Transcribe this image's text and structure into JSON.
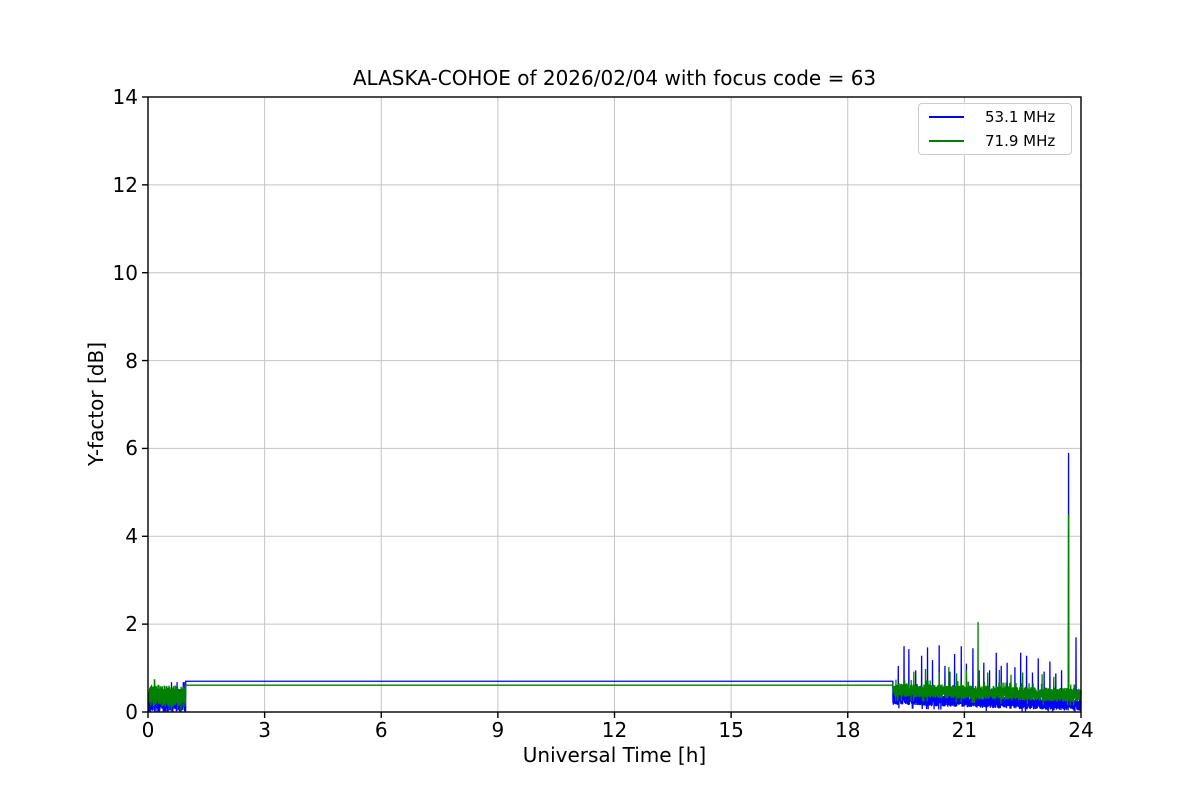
{
  "chart_data": {
    "type": "line",
    "title": "ALASKA-COHOE of 2026/02/04 with focus code = 63",
    "xlabel": "Universal Time [h]",
    "ylabel": "Y-factor [dB]",
    "xlim": [
      0,
      24
    ],
    "ylim": [
      0,
      14
    ],
    "x_ticks": [
      0,
      3,
      6,
      9,
      12,
      15,
      18,
      21,
      24
    ],
    "y_ticks": [
      0,
      2,
      4,
      6,
      8,
      10,
      12,
      14
    ],
    "grid": true,
    "grid_color": "#c4c4c4",
    "axis_color": "#000000",
    "legend": {
      "position": "upper right",
      "entries": [
        {
          "label": "53.1 MHz",
          "color": "#0000ff"
        },
        {
          "label": "71.9 MHz",
          "color": "#008000"
        }
      ]
    },
    "series": [
      {
        "name": "53.1 MHz",
        "color": "#0000ff",
        "segments": [
          {
            "type": "noise",
            "x_start": 0.02,
            "x_end": 0.97,
            "y_center_start": 0.26,
            "y_center_end": 0.26,
            "y_amplitude": 0.28,
            "spikes": []
          },
          {
            "type": "constant",
            "x_start": 0.97,
            "x_end": 19.16,
            "value": 0.7
          },
          {
            "type": "noise",
            "x_start": 19.16,
            "x_end": 24.0,
            "y_center_start": 0.3,
            "y_center_end": 0.16,
            "y_amplitude": 0.14,
            "spikes": [
              [
                19.3,
                1.05
              ],
              [
                19.45,
                1.5
              ],
              [
                19.57,
                1.43
              ],
              [
                19.75,
                0.95
              ],
              [
                19.9,
                1.28
              ],
              [
                20.05,
                1.47
              ],
              [
                20.18,
                1.18
              ],
              [
                20.35,
                1.52
              ],
              [
                20.5,
                1.05
              ],
              [
                20.63,
                0.92
              ],
              [
                20.75,
                1.32
              ],
              [
                20.92,
                1.5
              ],
              [
                21.05,
                1.1
              ],
              [
                21.22,
                1.45
              ],
              [
                21.38,
                0.95
              ],
              [
                21.5,
                1.12
              ],
              [
                21.65,
                0.95
              ],
              [
                21.82,
                1.35
              ],
              [
                21.95,
                1.05
              ],
              [
                22.1,
                1.12
              ],
              [
                22.3,
                1.02
              ],
              [
                22.45,
                1.35
              ],
              [
                22.6,
                1.28
              ],
              [
                22.75,
                0.9
              ],
              [
                22.9,
                1.22
              ],
              [
                23.05,
                0.92
              ],
              [
                23.2,
                1.15
              ],
              [
                23.35,
                0.88
              ],
              [
                23.5,
                0.95
              ],
              [
                23.68,
                5.9
              ],
              [
                23.87,
                1.7
              ]
            ]
          }
        ]
      },
      {
        "name": "71.9 MHz",
        "color": "#008000",
        "segments": [
          {
            "type": "noise",
            "x_start": 0.02,
            "x_end": 0.97,
            "y_center_start": 0.37,
            "y_center_end": 0.37,
            "y_amplitude": 0.25,
            "spikes": []
          },
          {
            "type": "constant",
            "x_start": 0.97,
            "x_end": 19.16,
            "value": 0.61
          },
          {
            "type": "noise",
            "x_start": 19.16,
            "x_end": 24.0,
            "y_center_start": 0.5,
            "y_center_end": 0.38,
            "y_amplitude": 0.16,
            "spikes": [
              [
                19.7,
                0.92
              ],
              [
                20.0,
                0.98
              ],
              [
                20.35,
                0.9
              ],
              [
                20.6,
                1.02
              ],
              [
                20.8,
                0.88
              ],
              [
                21.05,
                0.95
              ],
              [
                21.35,
                2.05
              ],
              [
                21.6,
                0.9
              ],
              [
                21.9,
                0.96
              ],
              [
                22.2,
                0.85
              ],
              [
                22.5,
                0.9
              ],
              [
                23.0,
                0.86
              ],
              [
                23.3,
                0.8
              ],
              [
                23.68,
                4.5
              ]
            ]
          }
        ]
      }
    ]
  }
}
